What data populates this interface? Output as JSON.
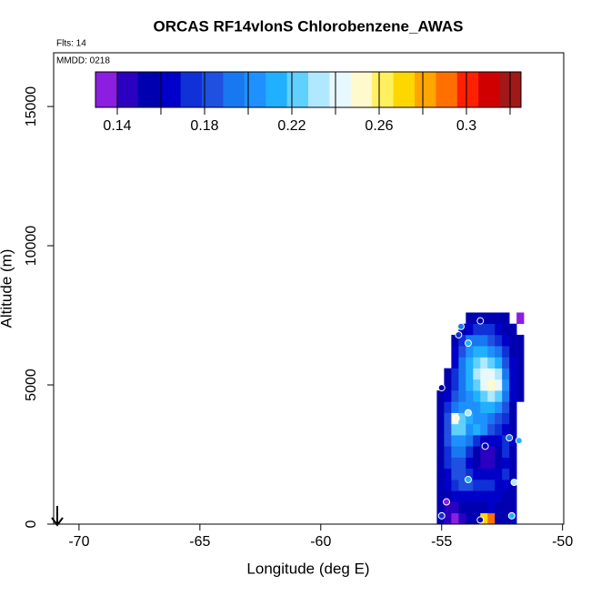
{
  "chart_data": {
    "type": "heatmap",
    "title": "ORCAS RF14vlonS Chlorobenzene_AWAS",
    "subtitle": "Flts: 14",
    "annotation": "MMDD: 0218",
    "xlabel": "Longitude (deg E)",
    "ylabel": "Altitude (m)",
    "xlim": [
      -71.05,
      -49.95
    ],
    "ylim": [
      0,
      16930
    ],
    "xticks": [
      -70,
      -65,
      -60,
      -55,
      -50
    ],
    "yticks": [
      0,
      5000,
      10000,
      15000
    ],
    "x": [
      -55.05,
      -54.75,
      -54.45,
      -54.15,
      -53.85,
      -53.55,
      -53.25,
      -52.95,
      -52.65,
      -52.35,
      -52.05,
      -51.75
    ],
    "y": [
      200,
      600,
      1000,
      1400,
      1800,
      2200,
      2600,
      3000,
      3400,
      3800,
      4200,
      4600,
      5000,
      5400,
      5800,
      6200,
      6600,
      7000,
      7400
    ],
    "z": [
      [
        0.15,
        0.14,
        0.13,
        0.14,
        0.15,
        0.15,
        0.27,
        0.29,
        0.15,
        0.15,
        0.16,
        null
      ],
      [
        0.15,
        0.14,
        0.14,
        0.15,
        0.15,
        0.15,
        0.15,
        0.16,
        0.15,
        0.15,
        0.15,
        null
      ],
      [
        0.15,
        0.15,
        0.16,
        0.16,
        0.16,
        0.16,
        0.16,
        0.16,
        0.16,
        0.15,
        0.15,
        null
      ],
      [
        0.15,
        0.16,
        0.17,
        0.18,
        0.18,
        0.17,
        0.17,
        0.17,
        0.16,
        0.16,
        0.15,
        null
      ],
      [
        0.15,
        0.16,
        0.18,
        0.18,
        0.17,
        0.16,
        0.16,
        0.16,
        0.16,
        0.17,
        0.15,
        null
      ],
      [
        0.15,
        0.17,
        0.18,
        0.18,
        0.16,
        0.15,
        0.14,
        0.14,
        0.15,
        0.16,
        0.15,
        null
      ],
      [
        0.15,
        0.17,
        0.19,
        0.19,
        0.17,
        0.15,
        0.14,
        0.14,
        0.15,
        0.17,
        0.15,
        null
      ],
      [
        0.15,
        0.18,
        0.2,
        0.2,
        0.19,
        0.17,
        0.16,
        0.16,
        0.16,
        0.17,
        0.16,
        null
      ],
      [
        0.15,
        0.18,
        0.22,
        0.22,
        0.2,
        0.21,
        0.2,
        0.18,
        0.17,
        0.16,
        0.15,
        null
      ],
      [
        0.15,
        0.18,
        0.24,
        0.22,
        0.21,
        0.2,
        0.2,
        0.19,
        0.18,
        0.17,
        0.15,
        null
      ],
      [
        0.15,
        0.17,
        0.19,
        0.2,
        0.2,
        0.2,
        0.21,
        0.21,
        0.2,
        0.18,
        0.15,
        null
      ],
      [
        0.15,
        0.16,
        0.18,
        0.19,
        0.2,
        0.21,
        0.22,
        0.23,
        0.22,
        0.19,
        0.16,
        0.15
      ],
      [
        null,
        0.15,
        0.17,
        0.19,
        0.21,
        0.22,
        0.24,
        0.25,
        0.24,
        0.2,
        0.16,
        0.15
      ],
      [
        null,
        0.15,
        0.17,
        0.19,
        0.21,
        0.23,
        0.24,
        0.24,
        0.23,
        0.19,
        0.16,
        0.15
      ],
      [
        null,
        null,
        0.16,
        0.19,
        0.21,
        0.22,
        0.23,
        0.22,
        0.21,
        0.18,
        0.16,
        0.15
      ],
      [
        null,
        null,
        0.16,
        0.18,
        0.2,
        0.21,
        0.21,
        0.2,
        0.19,
        0.17,
        0.15,
        0.15
      ],
      [
        null,
        null,
        0.15,
        0.17,
        0.19,
        0.19,
        0.19,
        0.18,
        0.17,
        0.16,
        0.15,
        0.15
      ],
      [
        null,
        null,
        null,
        0.15,
        0.16,
        0.17,
        0.17,
        0.17,
        0.16,
        0.15,
        0.15,
        null
      ],
      [
        null,
        null,
        null,
        null,
        0.15,
        0.15,
        0.15,
        0.15,
        0.15,
        0.15,
        null,
        0.13
      ]
    ],
    "points": {
      "lon": [
        -55.0,
        -54.2,
        -53.4,
        -54.3,
        -53.9,
        -53.9,
        -54.4,
        -53.2,
        -52.2,
        -51.8,
        -53.9,
        -52.0,
        -54.8,
        -55.0,
        -52.1,
        -53.4
      ],
      "alt": [
        4900,
        7100,
        7300,
        6800,
        6500,
        4000,
        3800,
        2800,
        3100,
        3000,
        1600,
        1500,
        800,
        300,
        300,
        150
      ],
      "values": [
        0.15,
        0.19,
        0.15,
        0.17,
        0.21,
        0.23,
        0.25,
        0.15,
        0.19,
        0.21,
        0.21,
        0.23,
        0.13,
        0.17,
        0.21,
        0.15
      ]
    },
    "colorbar": {
      "range": [
        0.13,
        0.325
      ],
      "ticks": [
        0.14,
        0.18,
        0.22,
        0.26,
        0.3
      ],
      "minor_ticks": [
        0.16,
        0.2,
        0.24,
        0.28,
        0.32
      ],
      "colors": [
        "#8b1ee0",
        "#2b00c0",
        "#0000b0",
        "#0000c8",
        "#1030d8",
        "#2050e0",
        "#1878f0",
        "#1e90ff",
        "#20b0ff",
        "#60d0ff",
        "#b0e8ff",
        "#e8f8ff",
        "#fffacd",
        "#fff060",
        "#ffd700",
        "#ffa500",
        "#ff7000",
        "#ff2000",
        "#d00000",
        "#a01818"
      ]
    }
  }
}
